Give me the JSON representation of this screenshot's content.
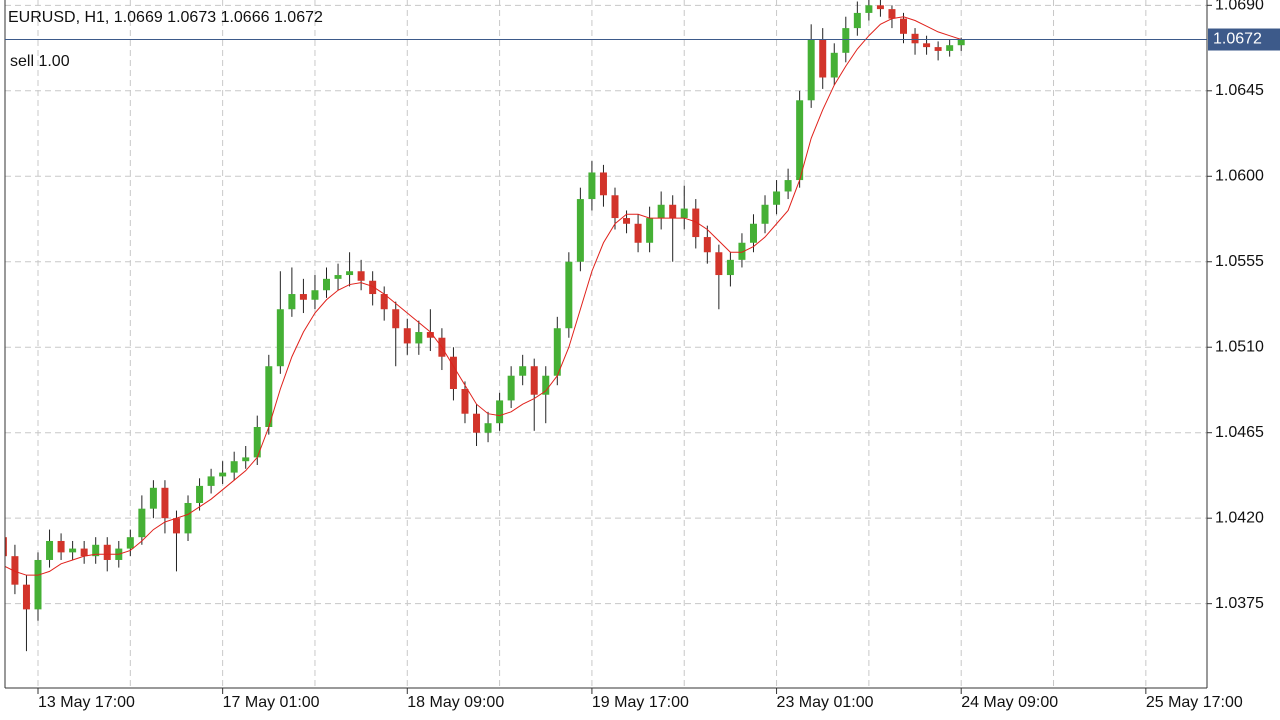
{
  "chart_data": {
    "type": "candlestick",
    "title": "EURUSD, H1, 1.0669 1.0673 1.0666 1.0672",
    "price_line": {
      "value": 1.0672,
      "text": "sell 1.00",
      "color": "#3d5a8a"
    },
    "up_color": "#45b035",
    "down_color": "#d2342a",
    "wick_color": "#222222",
    "ma_color": "#e0211b",
    "grid": true,
    "ylim": [
      1.03306,
      1.06928
    ],
    "yticks": [
      1.0375,
      {
        "value": 1.042,
        "label": "1.0420"
      },
      1.0465,
      {
        "value": 1.051,
        "label": "1.0510"
      },
      1.0555,
      {
        "value": 1.06,
        "label": "1.0600"
      },
      1.0645,
      {
        "value": 1.069,
        "label": "1.0690"
      }
    ],
    "categories": [
      null,
      null,
      null,
      "13 May 17:00",
      null,
      null,
      null,
      null,
      null,
      null,
      null,
      null,
      null,
      null,
      null,
      null,
      null,
      null,
      null,
      "17 May 01:00",
      null,
      null,
      null,
      null,
      null,
      null,
      null,
      null,
      null,
      null,
      null,
      null,
      null,
      null,
      null,
      "18 May 09:00",
      null,
      null,
      null,
      null,
      null,
      null,
      null,
      null,
      null,
      null,
      null,
      null,
      null,
      null,
      null,
      "19 May 17:00",
      null,
      null,
      null,
      null,
      null,
      null,
      null,
      null,
      null,
      null,
      null,
      null,
      null,
      null,
      null,
      "23 May 01:00",
      null,
      null,
      null,
      null,
      null,
      null,
      null,
      null,
      null,
      null,
      null,
      null,
      null,
      null,
      null,
      "24 May 09:00",
      null,
      null,
      null,
      null,
      null,
      null,
      null,
      null,
      null,
      null,
      null,
      null,
      null,
      null,
      null,
      "25 May 17:00",
      null,
      null,
      null,
      null
    ],
    "open": [
      1.041,
      1.04,
      1.0385,
      1.0372,
      1.0398,
      1.0408,
      1.0402,
      1.0404,
      1.04,
      1.0406,
      1.0398,
      1.0404,
      1.041,
      1.0425,
      1.0436,
      1.042,
      1.0412,
      1.0428,
      1.0437,
      1.0442,
      1.0444,
      1.045,
      1.0452,
      1.0468,
      1.05,
      1.053,
      1.0538,
      1.0535,
      1.054,
      1.0546,
      1.0548,
      1.055,
      1.0545,
      1.0538,
      1.053,
      1.052,
      1.0512,
      1.0518,
      1.0515,
      1.0505,
      1.0488,
      1.0475,
      1.0465,
      1.047,
      1.0482,
      1.0495,
      1.05,
      1.0485,
      1.0495,
      1.052,
      1.0555,
      1.0588,
      1.0602,
      1.059,
      1.0578,
      1.0575,
      1.0565,
      1.0578,
      1.0585,
      1.0578,
      1.0583,
      1.0568,
      1.056,
      1.0548,
      1.0556,
      1.0565,
      1.0575,
      1.0585,
      1.0592,
      1.0598,
      1.064,
      1.0672,
      1.0652,
      1.0665,
      1.0678,
      1.0686,
      1.069,
      1.0688,
      1.0683,
      1.0675,
      1.067,
      1.0668,
      1.0666,
      1.0669,
      null,
      null,
      null,
      null,
      null,
      null,
      null,
      null,
      null,
      null,
      null,
      null,
      null,
      null,
      null,
      null,
      null,
      null,
      null,
      null
    ],
    "high": [
      1.0414,
      1.0406,
      1.039,
      1.0402,
      1.0414,
      1.0412,
      1.0408,
      1.0408,
      1.041,
      1.041,
      1.0408,
      1.0414,
      1.0432,
      1.044,
      1.044,
      1.0424,
      1.0432,
      1.0441,
      1.0446,
      1.045,
      1.0455,
      1.0458,
      1.0474,
      1.0506,
      1.055,
      1.0552,
      1.0546,
      1.0548,
      1.0552,
      1.0554,
      1.056,
      1.0556,
      1.055,
      1.0542,
      1.0534,
      1.0525,
      1.0524,
      1.053,
      1.052,
      1.051,
      1.0492,
      1.048,
      1.0476,
      1.0486,
      1.05,
      1.0506,
      1.0504,
      1.05,
      1.0526,
      1.056,
      1.0594,
      1.0608,
      1.0606,
      1.0594,
      1.0582,
      1.058,
      1.0584,
      1.0592,
      1.059,
      1.0595,
      1.0588,
      1.0574,
      1.0564,
      1.056,
      1.057,
      1.058,
      1.059,
      1.0598,
      1.0604,
      1.0645,
      1.068,
      1.0678,
      1.067,
      1.0684,
      1.0692,
      1.0694,
      1.0693,
      1.069,
      1.0686,
      1.0678,
      1.0674,
      1.0671,
      1.0672,
      1.0673,
      null,
      null,
      null,
      null,
      null,
      null,
      null,
      null,
      null,
      null,
      null,
      null,
      null,
      null,
      null,
      null,
      null,
      null,
      null,
      null
    ],
    "low": [
      1.0394,
      1.038,
      1.035,
      1.0366,
      1.0394,
      1.0398,
      1.0398,
      1.0396,
      1.0396,
      1.0392,
      1.0394,
      1.04,
      1.0406,
      1.042,
      1.0412,
      1.0392,
      1.0408,
      1.0424,
      1.0433,
      1.0438,
      1.044,
      1.0446,
      1.0448,
      1.0464,
      1.0496,
      1.0526,
      1.0528,
      1.053,
      1.0536,
      1.054,
      1.0542,
      1.054,
      1.0532,
      1.0524,
      1.05,
      1.0506,
      1.0506,
      1.0508,
      1.0498,
      1.0482,
      1.047,
      1.0458,
      1.046,
      1.0466,
      1.0478,
      1.049,
      1.0466,
      1.047,
      1.049,
      1.0515,
      1.055,
      1.0582,
      1.0584,
      1.0572,
      1.057,
      1.056,
      1.056,
      1.0572,
      1.0555,
      1.0572,
      1.0562,
      1.0554,
      1.053,
      1.0542,
      1.0552,
      1.056,
      1.057,
      1.058,
      1.0588,
      1.0594,
      1.0636,
      1.0646,
      1.0648,
      1.066,
      1.0674,
      1.0682,
      1.0684,
      1.0678,
      1.067,
      1.0664,
      1.0664,
      1.0661,
      1.0663,
      1.0666,
      null,
      null,
      null,
      null,
      null,
      null,
      null,
      null,
      null,
      null,
      null,
      null,
      null,
      null,
      null,
      null,
      null,
      null,
      null,
      null
    ],
    "close": [
      1.04,
      1.0385,
      1.0372,
      1.0398,
      1.0408,
      1.0402,
      1.0404,
      1.04,
      1.0406,
      1.0398,
      1.0404,
      1.041,
      1.0425,
      1.0436,
      1.042,
      1.0412,
      1.0428,
      1.0437,
      1.0442,
      1.0444,
      1.045,
      1.0452,
      1.0468,
      1.05,
      1.053,
      1.0538,
      1.0535,
      1.054,
      1.0546,
      1.0548,
      1.055,
      1.0545,
      1.0538,
      1.053,
      1.052,
      1.0512,
      1.0518,
      1.0515,
      1.0505,
      1.0488,
      1.0475,
      1.0465,
      1.047,
      1.0482,
      1.0495,
      1.05,
      1.0485,
      1.0495,
      1.052,
      1.0555,
      1.0588,
      1.0602,
      1.059,
      1.0578,
      1.0575,
      1.0565,
      1.0578,
      1.0585,
      1.0578,
      1.0583,
      1.0568,
      1.056,
      1.0548,
      1.0556,
      1.0565,
      1.0575,
      1.0585,
      1.0592,
      1.0598,
      1.064,
      1.0672,
      1.0652,
      1.0665,
      1.0678,
      1.0686,
      1.069,
      1.0688,
      1.0683,
      1.0675,
      1.067,
      1.0668,
      1.0666,
      1.0669,
      1.0672,
      null,
      null,
      null,
      null,
      null,
      null,
      null,
      null,
      null,
      null,
      null,
      null,
      null,
      null,
      null,
      null,
      null,
      null,
      null,
      null
    ],
    "ma": [
      1.0395,
      1.0392,
      1.039,
      1.039,
      1.0392,
      1.0396,
      1.0398,
      1.04,
      1.0401,
      1.0401,
      1.0401,
      1.0403,
      1.0408,
      1.0414,
      1.0418,
      1.042,
      1.0422,
      1.0426,
      1.043,
      1.0435,
      1.044,
      1.0445,
      1.0452,
      1.0468,
      1.0488,
      1.0505,
      1.0518,
      1.0528,
      1.0535,
      1.054,
      1.0543,
      1.0544,
      1.0542,
      1.0538,
      1.0533,
      1.0528,
      1.0523,
      1.0518,
      1.051,
      1.05,
      1.049,
      1.048,
      1.0475,
      1.0474,
      1.0476,
      1.048,
      1.0483,
      1.0487,
      1.0495,
      1.051,
      1.053,
      1.055,
      1.0565,
      1.0575,
      1.058,
      1.058,
      1.0578,
      1.0578,
      1.0578,
      1.0578,
      1.0576,
      1.0572,
      1.0566,
      1.056,
      1.056,
      1.0563,
      1.0568,
      1.0575,
      1.0582,
      1.0598,
      1.062,
      1.0635,
      1.0648,
      1.0658,
      1.0667,
      1.0674,
      1.068,
      1.0683,
      1.0684,
      1.0682,
      1.0679,
      1.0676,
      1.0674,
      1.0672,
      null,
      null,
      null,
      null,
      null,
      null,
      null,
      null,
      null,
      null,
      null,
      null,
      null,
      null,
      null,
      null,
      null,
      null,
      null,
      null
    ]
  }
}
